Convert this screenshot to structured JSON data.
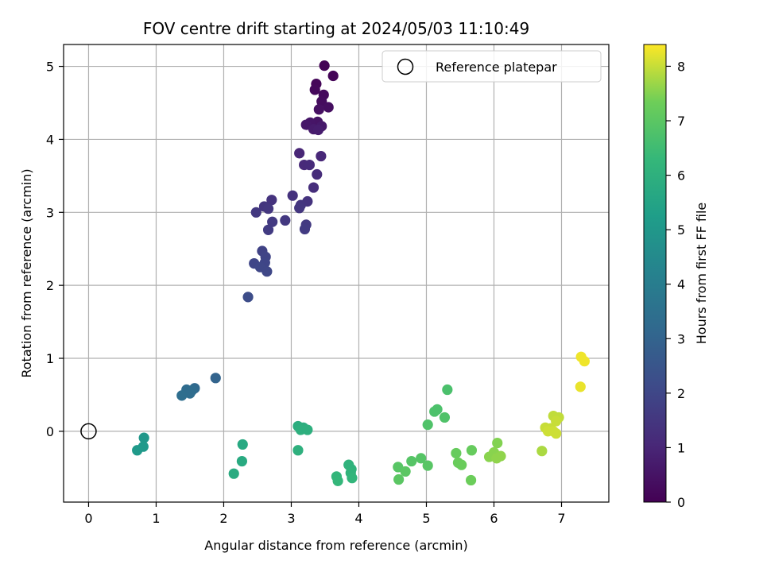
{
  "chart_data": {
    "type": "scatter",
    "title": "FOV centre drift starting at 2024/05/03 11:10:49",
    "xlabel": "Angular distance from reference (arcmin)",
    "ylabel": "Rotation from reference (arcmin)",
    "xlim": [
      -0.37,
      7.7
    ],
    "ylim": [
      -0.97,
      5.3
    ],
    "xticks": [
      0,
      1,
      2,
      3,
      4,
      5,
      6,
      7
    ],
    "yticks": [
      0,
      1,
      2,
      3,
      4,
      5
    ],
    "grid": true,
    "legend": {
      "placement": "top-right",
      "entries": [
        "Reference platepar"
      ]
    },
    "reference_point": {
      "x": 0,
      "y": 0
    },
    "colorbar": {
      "label": "Hours from first FF file",
      "range": [
        0,
        8.4
      ],
      "ticks": [
        0,
        1,
        2,
        3,
        4,
        5,
        6,
        7,
        8
      ],
      "colormap": "viridis"
    },
    "points": [
      {
        "x": 3.49,
        "y": 5.01,
        "c": 0.05
      },
      {
        "x": 3.62,
        "y": 4.87,
        "c": 0.1
      },
      {
        "x": 3.37,
        "y": 4.76,
        "c": 0.15
      },
      {
        "x": 3.35,
        "y": 4.68,
        "c": 0.2
      },
      {
        "x": 3.48,
        "y": 4.61,
        "c": 0.25
      },
      {
        "x": 3.45,
        "y": 4.52,
        "c": 0.3
      },
      {
        "x": 3.55,
        "y": 4.44,
        "c": 0.35
      },
      {
        "x": 3.41,
        "y": 4.41,
        "c": 0.4
      },
      {
        "x": 3.39,
        "y": 4.24,
        "c": 0.5
      },
      {
        "x": 3.28,
        "y": 4.23,
        "c": 0.55
      },
      {
        "x": 3.22,
        "y": 4.2,
        "c": 0.6
      },
      {
        "x": 3.45,
        "y": 4.18,
        "c": 0.65
      },
      {
        "x": 3.33,
        "y": 4.14,
        "c": 0.7
      },
      {
        "x": 3.4,
        "y": 4.13,
        "c": 0.75
      },
      {
        "x": 3.12,
        "y": 3.81,
        "c": 1.0
      },
      {
        "x": 3.44,
        "y": 3.77,
        "c": 1.05
      },
      {
        "x": 3.19,
        "y": 3.65,
        "c": 1.1
      },
      {
        "x": 3.27,
        "y": 3.65,
        "c": 1.15
      },
      {
        "x": 3.38,
        "y": 3.52,
        "c": 1.2
      },
      {
        "x": 3.33,
        "y": 3.34,
        "c": 1.25
      },
      {
        "x": 3.02,
        "y": 3.23,
        "c": 1.35
      },
      {
        "x": 2.71,
        "y": 3.17,
        "c": 1.4
      },
      {
        "x": 3.24,
        "y": 3.15,
        "c": 1.4
      },
      {
        "x": 3.14,
        "y": 3.1,
        "c": 1.45
      },
      {
        "x": 2.6,
        "y": 3.08,
        "c": 1.45
      },
      {
        "x": 3.12,
        "y": 3.06,
        "c": 1.5
      },
      {
        "x": 2.66,
        "y": 3.05,
        "c": 1.5
      },
      {
        "x": 2.48,
        "y": 3.0,
        "c": 1.55
      },
      {
        "x": 2.91,
        "y": 2.89,
        "c": 1.55
      },
      {
        "x": 2.72,
        "y": 2.87,
        "c": 1.6
      },
      {
        "x": 3.22,
        "y": 2.83,
        "c": 1.6
      },
      {
        "x": 3.2,
        "y": 2.77,
        "c": 1.65
      },
      {
        "x": 2.66,
        "y": 2.76,
        "c": 1.65
      },
      {
        "x": 2.57,
        "y": 2.47,
        "c": 1.85
      },
      {
        "x": 2.62,
        "y": 2.39,
        "c": 1.9
      },
      {
        "x": 2.45,
        "y": 2.3,
        "c": 1.95
      },
      {
        "x": 2.61,
        "y": 2.31,
        "c": 1.95
      },
      {
        "x": 2.54,
        "y": 2.25,
        "c": 2.0
      },
      {
        "x": 2.64,
        "y": 2.19,
        "c": 2.0
      },
      {
        "x": 2.36,
        "y": 1.84,
        "c": 2.2
      },
      {
        "x": 1.88,
        "y": 0.73,
        "c": 3.0
      },
      {
        "x": 1.57,
        "y": 0.59,
        "c": 3.2
      },
      {
        "x": 1.45,
        "y": 0.57,
        "c": 3.3
      },
      {
        "x": 1.53,
        "y": 0.56,
        "c": 3.3
      },
      {
        "x": 1.5,
        "y": 0.52,
        "c": 3.35
      },
      {
        "x": 1.38,
        "y": 0.49,
        "c": 3.4
      },
      {
        "x": 0.82,
        "y": -0.09,
        "c": 5.0
      },
      {
        "x": 0.81,
        "y": -0.21,
        "c": 5.05
      },
      {
        "x": 0.72,
        "y": -0.26,
        "c": 5.1
      },
      {
        "x": 2.28,
        "y": -0.18,
        "c": 5.7
      },
      {
        "x": 2.27,
        "y": -0.41,
        "c": 5.75
      },
      {
        "x": 2.15,
        "y": -0.58,
        "c": 5.8
      },
      {
        "x": 3.1,
        "y": 0.07,
        "c": 5.9
      },
      {
        "x": 3.18,
        "y": 0.05,
        "c": 5.9
      },
      {
        "x": 3.14,
        "y": 0.02,
        "c": 5.95
      },
      {
        "x": 3.24,
        "y": 0.02,
        "c": 5.95
      },
      {
        "x": 3.1,
        "y": -0.26,
        "c": 6.0
      },
      {
        "x": 3.85,
        "y": -0.46,
        "c": 6.1
      },
      {
        "x": 3.89,
        "y": -0.52,
        "c": 6.1
      },
      {
        "x": 3.88,
        "y": -0.57,
        "c": 6.15
      },
      {
        "x": 3.67,
        "y": -0.62,
        "c": 6.2
      },
      {
        "x": 3.9,
        "y": -0.64,
        "c": 6.2
      },
      {
        "x": 3.69,
        "y": -0.68,
        "c": 6.25
      },
      {
        "x": 5.31,
        "y": 0.57,
        "c": 6.7
      },
      {
        "x": 5.16,
        "y": 0.3,
        "c": 6.75
      },
      {
        "x": 5.12,
        "y": 0.27,
        "c": 6.75
      },
      {
        "x": 5.27,
        "y": 0.19,
        "c": 6.8
      },
      {
        "x": 5.02,
        "y": 0.09,
        "c": 6.8
      },
      {
        "x": 4.92,
        "y": -0.37,
        "c": 6.9
      },
      {
        "x": 4.78,
        "y": -0.41,
        "c": 6.9
      },
      {
        "x": 5.02,
        "y": -0.47,
        "c": 6.95
      },
      {
        "x": 4.58,
        "y": -0.49,
        "c": 6.95
      },
      {
        "x": 4.69,
        "y": -0.55,
        "c": 7.0
      },
      {
        "x": 4.59,
        "y": -0.66,
        "c": 7.0
      },
      {
        "x": 5.67,
        "y": -0.26,
        "c": 7.2
      },
      {
        "x": 5.44,
        "y": -0.3,
        "c": 7.2
      },
      {
        "x": 5.47,
        "y": -0.43,
        "c": 7.25
      },
      {
        "x": 5.52,
        "y": -0.46,
        "c": 7.25
      },
      {
        "x": 5.66,
        "y": -0.67,
        "c": 7.3
      },
      {
        "x": 6.05,
        "y": -0.16,
        "c": 7.5
      },
      {
        "x": 6.0,
        "y": -0.29,
        "c": 7.55
      },
      {
        "x": 5.93,
        "y": -0.35,
        "c": 7.55
      },
      {
        "x": 6.04,
        "y": -0.37,
        "c": 7.6
      },
      {
        "x": 6.1,
        "y": -0.34,
        "c": 7.6
      },
      {
        "x": 6.71,
        "y": -0.27,
        "c": 7.8
      },
      {
        "x": 6.88,
        "y": 0.21,
        "c": 7.95
      },
      {
        "x": 6.96,
        "y": 0.19,
        "c": 7.95
      },
      {
        "x": 6.92,
        "y": 0.14,
        "c": 8.0
      },
      {
        "x": 6.76,
        "y": 0.05,
        "c": 8.0
      },
      {
        "x": 6.84,
        "y": 0.04,
        "c": 8.0
      },
      {
        "x": 6.8,
        "y": 0.0,
        "c": 8.05
      },
      {
        "x": 6.88,
        "y": 0.0,
        "c": 8.05
      },
      {
        "x": 6.92,
        "y": -0.03,
        "c": 8.05
      },
      {
        "x": 7.29,
        "y": 1.02,
        "c": 8.3
      },
      {
        "x": 7.34,
        "y": 0.96,
        "c": 8.3
      },
      {
        "x": 7.28,
        "y": 0.61,
        "c": 8.25
      }
    ]
  }
}
